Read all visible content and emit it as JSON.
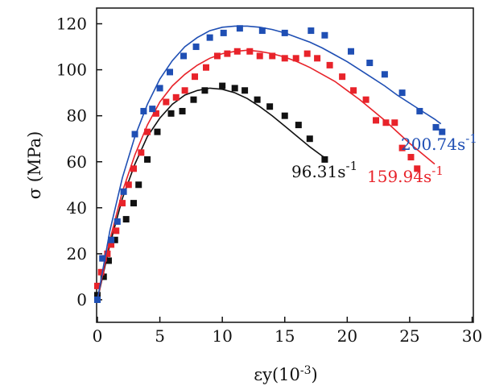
{
  "chart_data": {
    "type": "scatter",
    "xlabel": "εy(10",
    "xlabel_sup": "-3",
    "xlabel_end": ")",
    "ylabel": "σ (MPa)",
    "xlim": [
      0,
      30
    ],
    "ylim": [
      0,
      120
    ],
    "x_ticks": [
      "0",
      "5",
      "10",
      "15",
      "20",
      "25",
      "30"
    ],
    "y_ticks": [
      "0",
      "20",
      "40",
      "60",
      "80",
      "100",
      "120"
    ],
    "grid": false,
    "series": [
      {
        "name": "96.31s",
        "name_sup": "-1",
        "color": "#111111",
        "points": [
          [
            0,
            2
          ],
          [
            0.5,
            10
          ],
          [
            0.9,
            17
          ],
          [
            1.4,
            26
          ],
          [
            2.3,
            35
          ],
          [
            2.9,
            42
          ],
          [
            3.3,
            50
          ],
          [
            4.0,
            61
          ],
          [
            4.8,
            73
          ],
          [
            5.9,
            81
          ],
          [
            6.8,
            82
          ],
          [
            7.7,
            87
          ],
          [
            8.6,
            91
          ],
          [
            10.0,
            93
          ],
          [
            11.0,
            92
          ],
          [
            11.8,
            91
          ],
          [
            12.8,
            87
          ],
          [
            13.8,
            84
          ],
          [
            15.0,
            80
          ],
          [
            16.1,
            76
          ],
          [
            17.0,
            70
          ],
          [
            18.2,
            61
          ]
        ],
        "fit": [
          [
            0,
            0
          ],
          [
            1,
            24
          ],
          [
            2,
            44
          ],
          [
            3,
            59
          ],
          [
            4,
            71
          ],
          [
            5,
            79
          ],
          [
            6,
            85
          ],
          [
            7,
            89
          ],
          [
            8,
            91
          ],
          [
            9,
            92
          ],
          [
            10,
            91.5
          ],
          [
            11,
            90
          ],
          [
            12,
            87.5
          ],
          [
            13,
            84
          ],
          [
            14,
            80
          ],
          [
            15,
            75.5
          ],
          [
            16,
            71
          ],
          [
            17,
            66.5
          ],
          [
            18,
            62.5
          ],
          [
            18.3,
            61.5
          ]
        ]
      },
      {
        "name": "159.94s",
        "name_sup": "-1",
        "color": "#e8232a",
        "points": [
          [
            0,
            6
          ],
          [
            0.3,
            12
          ],
          [
            0.5,
            18
          ],
          [
            0.8,
            20
          ],
          [
            1.1,
            24
          ],
          [
            1.5,
            30
          ],
          [
            2.0,
            42
          ],
          [
            2.5,
            50
          ],
          [
            2.9,
            57
          ],
          [
            3.5,
            64
          ],
          [
            4.0,
            73
          ],
          [
            4.7,
            81
          ],
          [
            5.5,
            86
          ],
          [
            6.3,
            88
          ],
          [
            7.0,
            91
          ],
          [
            7.8,
            97
          ],
          [
            8.7,
            101
          ],
          [
            9.6,
            106
          ],
          [
            10.4,
            107
          ],
          [
            11.2,
            108
          ],
          [
            12.2,
            108
          ],
          [
            13.0,
            106
          ],
          [
            14.0,
            106
          ],
          [
            15.0,
            105
          ],
          [
            15.9,
            105
          ],
          [
            16.8,
            107
          ],
          [
            17.6,
            105
          ],
          [
            18.6,
            102
          ],
          [
            19.6,
            97
          ],
          [
            20.5,
            91
          ],
          [
            21.5,
            87
          ],
          [
            22.3,
            78
          ],
          [
            23.1,
            77
          ],
          [
            23.8,
            77
          ],
          [
            24.4,
            66
          ],
          [
            25.1,
            62
          ],
          [
            25.6,
            57
          ]
        ],
        "fit": [
          [
            0,
            0
          ],
          [
            1,
            26
          ],
          [
            2,
            47
          ],
          [
            3,
            63
          ],
          [
            4,
            76
          ],
          [
            5,
            86
          ],
          [
            6,
            93
          ],
          [
            7,
            98
          ],
          [
            8,
            102
          ],
          [
            9,
            105
          ],
          [
            10,
            107
          ],
          [
            11,
            108
          ],
          [
            12,
            108.5
          ],
          [
            13,
            108
          ],
          [
            14,
            107
          ],
          [
            15,
            105.5
          ],
          [
            16,
            103.5
          ],
          [
            17,
            101
          ],
          [
            18,
            98
          ],
          [
            19,
            95
          ],
          [
            20,
            91
          ],
          [
            21,
            87
          ],
          [
            22,
            82.5
          ],
          [
            23,
            78
          ],
          [
            24,
            73
          ],
          [
            25,
            68
          ],
          [
            26,
            63.5
          ],
          [
            27,
            59
          ]
        ]
      },
      {
        "name": "200.74s",
        "name_sup": "-1",
        "color": "#1f4fb4",
        "points": [
          [
            0,
            0
          ],
          [
            0.4,
            18
          ],
          [
            1.1,
            26
          ],
          [
            1.6,
            34
          ],
          [
            2.1,
            47
          ],
          [
            3.0,
            72
          ],
          [
            3.7,
            82
          ],
          [
            4.4,
            83
          ],
          [
            5.0,
            92
          ],
          [
            5.8,
            99
          ],
          [
            6.9,
            106
          ],
          [
            7.9,
            110
          ],
          [
            9.0,
            114
          ],
          [
            10.1,
            116
          ],
          [
            11.4,
            118
          ],
          [
            13.2,
            117
          ],
          [
            15.0,
            116
          ],
          [
            17.1,
            117
          ],
          [
            18.2,
            115
          ],
          [
            20.3,
            108
          ],
          [
            21.8,
            103
          ],
          [
            23.0,
            98
          ],
          [
            24.4,
            90
          ],
          [
            25.8,
            82
          ],
          [
            27.1,
            75
          ],
          [
            27.6,
            73
          ]
        ],
        "fit": [
          [
            0,
            0
          ],
          [
            1,
            30
          ],
          [
            2,
            53
          ],
          [
            3,
            71
          ],
          [
            4,
            85
          ],
          [
            5,
            96
          ],
          [
            6,
            104
          ],
          [
            7,
            110
          ],
          [
            8,
            114
          ],
          [
            9,
            117
          ],
          [
            10,
            118.5
          ],
          [
            11,
            119
          ],
          [
            12,
            119
          ],
          [
            13,
            118.5
          ],
          [
            14,
            117.5
          ],
          [
            15,
            116
          ],
          [
            16,
            114
          ],
          [
            17,
            112
          ],
          [
            18,
            109.5
          ],
          [
            19,
            106.5
          ],
          [
            20,
            103.5
          ],
          [
            21,
            100
          ],
          [
            22,
            96.5
          ],
          [
            23,
            93
          ],
          [
            24,
            89
          ],
          [
            25,
            85.5
          ],
          [
            26,
            82
          ],
          [
            27,
            78.5
          ],
          [
            27.5,
            76.5
          ]
        ]
      }
    ]
  }
}
